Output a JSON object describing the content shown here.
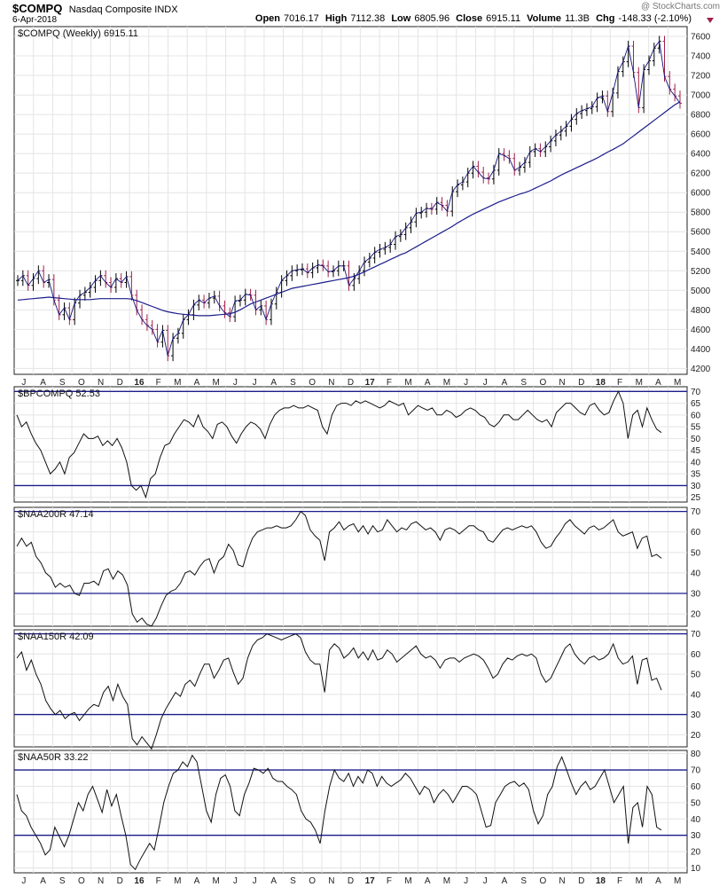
{
  "header": {
    "symbol": "$COMPQ",
    "name": "Nasdaq Composite INDX",
    "date": "6-Apr-2018",
    "watermark": "@ StockCharts.com",
    "open_label": "Open",
    "open": "7016.17",
    "high_label": "High",
    "high": "7112.38",
    "low_label": "Low",
    "low": "6805.96",
    "close_label": "Close",
    "close": "6915.11",
    "volume_label": "Volume",
    "volume": "11.3B",
    "chg_label": "Chg",
    "chg": "-148.33 (-2.10%)"
  },
  "colors": {
    "price_up": "#000000",
    "price_down": "#a0204a",
    "ma": "#1c1c8c",
    "frame": "#222222",
    "ref_line": "#1c1c8c"
  },
  "x_axis": {
    "labels": [
      "J",
      "A",
      "S",
      "O",
      "N",
      "D",
      "16",
      "F",
      "M",
      "A",
      "M",
      "J",
      "J",
      "A",
      "S",
      "O",
      "N",
      "D",
      "17",
      "F",
      "M",
      "A",
      "M",
      "J",
      "J",
      "A",
      "S",
      "O",
      "N",
      "D",
      "18",
      "F",
      "M",
      "A",
      "M"
    ],
    "bold": [
      "16",
      "17",
      "18"
    ]
  },
  "chart_data": [
    {
      "type": "line",
      "panel": "price",
      "legend": "$COMPQ (Weekly) 6915.11",
      "y_ticks": [
        4200,
        4400,
        4600,
        4800,
        5000,
        5200,
        5400,
        5600,
        5800,
        6000,
        6200,
        6400,
        6600,
        6800,
        7000,
        7200,
        7400,
        7600
      ],
      "ylim": [
        4140,
        7700
      ],
      "grid": true,
      "series": [
        {
          "role": "close",
          "values": [
            5100,
            5150,
            5050,
            5120,
            5200,
            5080,
            5110,
            4900,
            4750,
            4820,
            4700,
            4870,
            4950,
            4980,
            5030,
            5100,
            5150,
            5080,
            5030,
            5120,
            5080,
            5140,
            4950,
            4800,
            4700,
            4640,
            4600,
            4470,
            4590,
            4330,
            4510,
            4560,
            4700,
            4750,
            4850,
            4900,
            4870,
            4920,
            4940,
            4840,
            4770,
            4730,
            4890,
            4900,
            4960,
            4950,
            4800,
            4840,
            4700,
            4860,
            4980,
            5100,
            5150,
            5200,
            5210,
            5220,
            5180,
            5230,
            5260,
            5250,
            5190,
            5200,
            5250,
            5250,
            5050,
            5120,
            5200,
            5290,
            5330,
            5390,
            5420,
            5440,
            5470,
            5550,
            5570,
            5640,
            5700,
            5790,
            5800,
            5840,
            5830,
            5900,
            5870,
            5810,
            6010,
            6080,
            6110,
            6200,
            6270,
            6210,
            6150,
            6140,
            6230,
            6400,
            6380,
            6350,
            6230,
            6260,
            6310,
            6420,
            6450,
            6420,
            6470,
            6530,
            6590,
            6630,
            6680,
            6750,
            6810,
            6840,
            6860,
            6880,
            6970,
            6990,
            6830,
            7020,
            7240,
            7340,
            7500,
            7230,
            6870,
            7260,
            7350,
            7480,
            7550,
            7190,
            7060,
            6990,
            6915
          ]
        },
        {
          "role": "moving_average",
          "values": [
            4900,
            4905,
            4910,
            4915,
            4920,
            4925,
            4930,
            4925,
            4920,
            4915,
            4910,
            4905,
            4905,
            4905,
            4905,
            4910,
            4915,
            4915,
            4915,
            4915,
            4915,
            4915,
            4910,
            4895,
            4875,
            4855,
            4835,
            4815,
            4795,
            4780,
            4770,
            4760,
            4755,
            4750,
            4745,
            4740,
            4740,
            4740,
            4745,
            4750,
            4755,
            4760,
            4775,
            4800,
            4830,
            4860,
            4880,
            4900,
            4920,
            4940,
            4960,
            4980,
            5000,
            5020,
            5030,
            5040,
            5050,
            5060,
            5070,
            5080,
            5090,
            5100,
            5110,
            5120,
            5130,
            5145,
            5165,
            5190,
            5215,
            5240,
            5265,
            5290,
            5315,
            5340,
            5365,
            5385,
            5415,
            5445,
            5475,
            5505,
            5535,
            5565,
            5595,
            5625,
            5655,
            5690,
            5720,
            5750,
            5780,
            5805,
            5830,
            5855,
            5880,
            5905,
            5925,
            5945,
            5965,
            5985,
            6000,
            6020,
            6045,
            6070,
            6095,
            6120,
            6150,
            6180,
            6205,
            6230,
            6255,
            6280,
            6305,
            6330,
            6355,
            6385,
            6415,
            6440,
            6470,
            6500,
            6540,
            6580,
            6620,
            6660,
            6700,
            6740,
            6780,
            6820,
            6860,
            6900,
            6930
          ]
        }
      ]
    },
    {
      "type": "line",
      "panel": "indicator",
      "legend": "$BPCOMPQ 52.53",
      "y_ticks": [
        25,
        30,
        35,
        40,
        45,
        50,
        55,
        60,
        65,
        70
      ],
      "ylim": [
        23,
        72
      ],
      "ref_lines": [
        30,
        70
      ],
      "values": [
        60,
        55,
        57,
        52,
        48,
        45,
        40,
        35,
        37,
        40,
        35,
        42,
        44,
        48,
        52,
        50,
        50,
        51,
        47,
        49,
        47,
        50,
        46,
        40,
        30,
        28,
        30,
        25,
        33,
        35,
        42,
        47,
        48,
        52,
        55,
        58,
        57,
        55,
        60,
        55,
        53,
        50,
        56,
        57,
        55,
        51,
        48,
        52,
        55,
        57,
        56,
        54,
        50,
        56,
        60,
        62,
        63,
        63,
        64,
        63,
        63,
        64,
        63,
        62,
        55,
        52,
        60,
        64,
        65,
        65,
        64,
        66,
        65,
        66,
        65,
        64,
        63,
        64,
        66,
        65,
        64,
        65,
        60,
        62,
        64,
        63,
        62,
        63,
        60,
        60,
        62,
        61,
        59,
        60,
        62,
        63,
        62,
        60,
        59,
        56,
        55,
        57,
        60,
        60,
        58,
        58,
        60,
        62,
        60,
        58,
        57,
        58,
        55,
        61,
        63,
        65,
        65,
        63,
        61,
        60,
        64,
        65,
        62,
        60,
        61,
        66,
        70,
        65,
        50,
        60,
        62,
        55,
        63,
        58,
        54,
        52.53
      ]
    },
    {
      "type": "line",
      "panel": "indicator",
      "legend": "$NAA200R 47.14",
      "y_ticks": [
        20,
        30,
        40,
        50,
        60,
        70
      ],
      "ylim": [
        14,
        72
      ],
      "ref_lines": [
        30,
        70
      ],
      "values": [
        53,
        57,
        53,
        55,
        48,
        45,
        40,
        38,
        33,
        35,
        33,
        34,
        30,
        29,
        35,
        35,
        36,
        34,
        41,
        42,
        37,
        41,
        39,
        34,
        20,
        16,
        18,
        15,
        14,
        18,
        24,
        29,
        31,
        32,
        35,
        40,
        41,
        39,
        43,
        46,
        47,
        40,
        46,
        48,
        54,
        51,
        44,
        43,
        51,
        57,
        60,
        61,
        62,
        62,
        63,
        62,
        62,
        63,
        66,
        70,
        68,
        61,
        58,
        56,
        46,
        60,
        62,
        65,
        61,
        63,
        64,
        60,
        63,
        59,
        63,
        60,
        61,
        66,
        63,
        60,
        62,
        61,
        64,
        65,
        63,
        61,
        62,
        60,
        56,
        61,
        62,
        61,
        59,
        61,
        63,
        63,
        61,
        60,
        56,
        55,
        58,
        61,
        62,
        61,
        62,
        63,
        62,
        63,
        60,
        55,
        52,
        53,
        57,
        60,
        64,
        66,
        63,
        61,
        59,
        62,
        63,
        61,
        62,
        64,
        66,
        60,
        58,
        59,
        60,
        52,
        57,
        58,
        48,
        49,
        47.14
      ]
    },
    {
      "type": "line",
      "panel": "indicator",
      "legend": "$NAA150R 42.09",
      "y_ticks": [
        20,
        30,
        40,
        50,
        60,
        70
      ],
      "ylim": [
        14,
        72
      ],
      "ref_lines": [
        30,
        70
      ],
      "values": [
        58,
        61,
        52,
        57,
        50,
        45,
        37,
        33,
        30,
        32,
        28,
        30,
        31,
        27,
        30,
        33,
        35,
        34,
        41,
        44,
        37,
        45,
        39,
        35,
        18,
        15,
        19,
        16,
        13,
        20,
        28,
        33,
        37,
        41,
        39,
        45,
        47,
        44,
        50,
        55,
        55,
        48,
        52,
        57,
        58,
        51,
        45,
        48,
        58,
        64,
        67,
        68,
        70,
        69,
        68,
        67,
        68,
        69,
        70,
        68,
        61,
        57,
        55,
        55,
        41,
        62,
        65,
        63,
        58,
        60,
        63,
        58,
        61,
        57,
        62,
        57,
        58,
        62,
        60,
        56,
        58,
        60,
        62,
        64,
        60,
        58,
        59,
        57,
        53,
        57,
        58,
        58,
        56,
        58,
        59,
        60,
        59,
        57,
        53,
        48,
        50,
        55,
        58,
        57,
        59,
        60,
        59,
        60,
        58,
        50,
        46,
        48,
        53,
        58,
        63,
        65,
        60,
        57,
        55,
        58,
        59,
        57,
        58,
        60,
        65,
        58,
        55,
        56,
        59,
        45,
        57,
        58,
        47,
        48,
        42.09
      ]
    },
    {
      "type": "line",
      "panel": "indicator",
      "legend": "$NAA50R 33.22",
      "y_ticks": [
        10,
        20,
        30,
        40,
        50,
        60,
        70,
        80
      ],
      "ylim": [
        7,
        82
      ],
      "ref_lines": [
        30,
        70
      ],
      "values": [
        55,
        45,
        42,
        35,
        30,
        25,
        18,
        21,
        35,
        29,
        23,
        30,
        40,
        50,
        45,
        55,
        60,
        52,
        44,
        58,
        48,
        55,
        42,
        30,
        12,
        9,
        15,
        20,
        25,
        21,
        35,
        50,
        60,
        68,
        70,
        75,
        72,
        79,
        75,
        60,
        45,
        38,
        55,
        65,
        67,
        60,
        45,
        42,
        55,
        62,
        71,
        70,
        68,
        71,
        65,
        63,
        63,
        60,
        58,
        55,
        45,
        40,
        38,
        33,
        25,
        45,
        60,
        70,
        65,
        63,
        68,
        60,
        66,
        62,
        70,
        68,
        60,
        66,
        62,
        60,
        62,
        64,
        68,
        65,
        60,
        55,
        60,
        58,
        50,
        55,
        58,
        55,
        50,
        55,
        60,
        60,
        58,
        55,
        45,
        35,
        36,
        50,
        55,
        60,
        62,
        63,
        60,
        62,
        58,
        45,
        37,
        42,
        55,
        60,
        72,
        78,
        70,
        62,
        55,
        60,
        63,
        58,
        60,
        65,
        70,
        60,
        50,
        55,
        60,
        25,
        47,
        50,
        35,
        60,
        55,
        35,
        33.22
      ]
    }
  ]
}
